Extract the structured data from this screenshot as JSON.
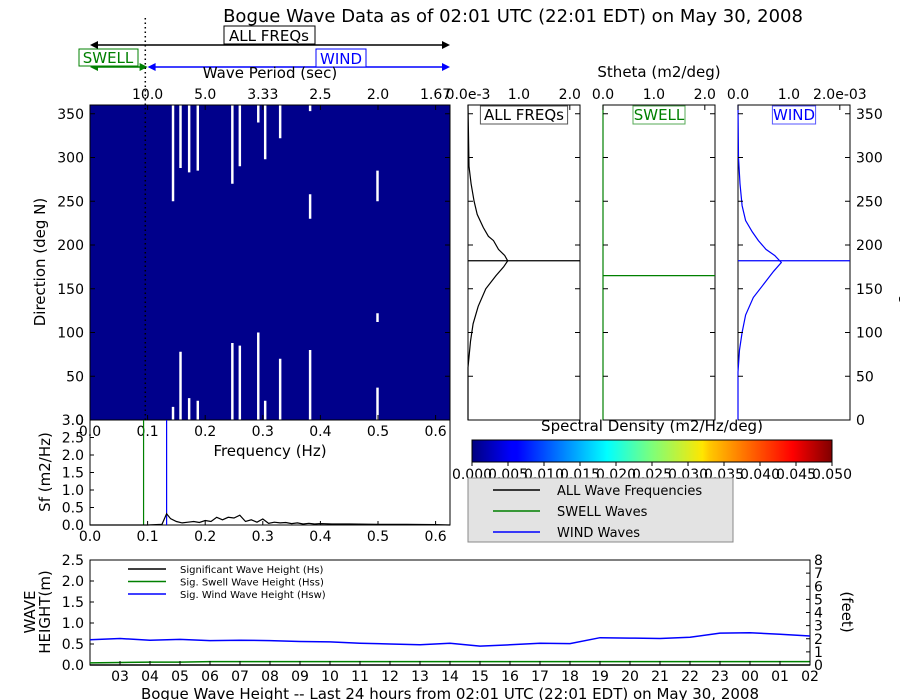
{
  "title": "Bogue Wave Data as of 02:01 UTC (22:01 EDT) on May 30, 2008",
  "colors": {
    "all": "#000000",
    "swell": "#008000",
    "wind": "#0000ff",
    "field": "#00008b",
    "frame": "#000000",
    "legend_bg": "#e3e3e3"
  },
  "band_arrows": {
    "all_label": "ALL FREQs",
    "wind_label": "WIND",
    "swell_label": "SWELL",
    "swell_range_hz": [
      0,
      0.1
    ],
    "wind_range_hz": [
      0.1,
      0.625
    ],
    "all_range_hz": [
      0,
      0.625
    ]
  },
  "chart_data": [
    {
      "id": "directional_spectrum",
      "type": "heatmap",
      "xlabel": "Frequency (Hz)",
      "ylabel": "Direction (deg N)",
      "top_xlabel": "Wave Period (sec)",
      "xlim": [
        0.0,
        0.625
      ],
      "ylim": [
        0,
        360
      ],
      "x_ticks": [
        "0.0",
        "0.1",
        "0.2",
        "0.3",
        "0.4",
        "0.5",
        "0.6"
      ],
      "x_tick_values": [
        0.0,
        0.1,
        0.2,
        0.3,
        0.4,
        0.5,
        0.6
      ],
      "top_ticks": [
        "10.0",
        "5.0",
        "3.33",
        "2.5",
        "2.0",
        "1.67"
      ],
      "top_tick_values": [
        0.1,
        0.2,
        0.3,
        0.4,
        0.5,
        0.6
      ],
      "y_ticks": [
        0,
        50,
        100,
        150,
        200,
        250,
        300,
        350
      ],
      "swell_cutoff_hz": 0.096,
      "background_value": 0.0,
      "nodata_bins": [
        {
          "f": 0.142,
          "d0": 0,
          "d1": 15
        },
        {
          "f": 0.142,
          "d0": 250,
          "d1": 360
        },
        {
          "f": 0.155,
          "d0": 0,
          "d1": 78
        },
        {
          "f": 0.155,
          "d0": 288,
          "d1": 360
        },
        {
          "f": 0.17,
          "d0": 0,
          "d1": 25
        },
        {
          "f": 0.17,
          "d0": 283,
          "d1": 360
        },
        {
          "f": 0.185,
          "d0": 0,
          "d1": 22
        },
        {
          "f": 0.185,
          "d0": 285,
          "d1": 360
        },
        {
          "f": 0.245,
          "d0": 0,
          "d1": 88
        },
        {
          "f": 0.245,
          "d0": 270,
          "d1": 360
        },
        {
          "f": 0.258,
          "d0": 0,
          "d1": 85
        },
        {
          "f": 0.258,
          "d0": 290,
          "d1": 360
        },
        {
          "f": 0.29,
          "d0": 0,
          "d1": 100
        },
        {
          "f": 0.29,
          "d0": 340,
          "d1": 360
        },
        {
          "f": 0.302,
          "d0": 0,
          "d1": 22
        },
        {
          "f": 0.302,
          "d0": 298,
          "d1": 360
        },
        {
          "f": 0.328,
          "d0": 0,
          "d1": 70
        },
        {
          "f": 0.328,
          "d0": 322,
          "d1": 360
        },
        {
          "f": 0.38,
          "d0": 0,
          "d1": 80
        },
        {
          "f": 0.38,
          "d0": 230,
          "d1": 258
        },
        {
          "f": 0.38,
          "d0": 353,
          "d1": 360
        },
        {
          "f": 0.497,
          "d0": 0,
          "d1": 37
        },
        {
          "f": 0.497,
          "d0": 112,
          "d1": 122
        },
        {
          "f": 0.497,
          "d0": 250,
          "d1": 285
        }
      ],
      "nodata_bin_width_hz": 0.006
    },
    {
      "id": "stheta_all",
      "type": "line",
      "label": "ALL FREQs",
      "top_xlabel": "Stheta (m2/deg)",
      "x_ticks": [
        "0.0e-3",
        "1.0",
        "2.0"
      ],
      "x_tick_values": [
        0.0,
        1.0,
        2.0
      ],
      "xlim": [
        0,
        2.2
      ],
      "ylim": [
        0,
        360
      ],
      "mean_direction": 182,
      "x": [
        0,
        0,
        0.05,
        0.1,
        0.2,
        0.35,
        0.55,
        0.7,
        0.78,
        0.72,
        0.6,
        0.5,
        0.4,
        0.3,
        0.18,
        0.12,
        0.06,
        0.02,
        0
      ],
      "y": [
        0,
        60,
        90,
        110,
        130,
        150,
        165,
        175,
        182,
        188,
        195,
        205,
        210,
        220,
        235,
        250,
        270,
        290,
        360
      ]
    },
    {
      "id": "stheta_swell",
      "type": "line",
      "label": "SWELL",
      "top_xlabel": "",
      "x_ticks": [
        "0.0",
        "1.0",
        "2.0"
      ],
      "x_tick_values": [
        0.0,
        1.0,
        2.0
      ],
      "xlim": [
        0,
        2.2
      ],
      "ylim": [
        0,
        360
      ],
      "mean_direction": 165,
      "x": [
        0,
        0
      ],
      "y": [
        0,
        360
      ]
    },
    {
      "id": "stheta_wind",
      "type": "line",
      "label": "WIND",
      "top_xlabel": "",
      "x_ticks": [
        "0.0",
        "1.0",
        "2.0e-03"
      ],
      "x_tick_values": [
        0.0,
        1.0,
        2.0
      ],
      "xlim": [
        0,
        2.2
      ],
      "ylim": [
        0,
        360
      ],
      "right_ylabel": "Direction (deg N)",
      "mean_direction": 182,
      "x": [
        0,
        0,
        0.03,
        0.08,
        0.15,
        0.3,
        0.5,
        0.7,
        0.85,
        0.72,
        0.55,
        0.4,
        0.28,
        0.15,
        0.08,
        0.04,
        0.01,
        0
      ],
      "y": [
        0,
        55,
        80,
        100,
        120,
        140,
        155,
        170,
        180,
        188,
        195,
        205,
        215,
        228,
        245,
        270,
        300,
        360
      ]
    },
    {
      "id": "spectrum_1d",
      "type": "line",
      "xlabel": "Frequency (Hz)",
      "ylabel": "Sf (m2/Hz)",
      "xlim": [
        0.0,
        0.625
      ],
      "ylim": [
        0.0,
        3.0
      ],
      "x_ticks": [
        "0.0",
        "0.1",
        "0.2",
        "0.3",
        "0.4",
        "0.5",
        "0.6"
      ],
      "x_tick_values": [
        0.0,
        0.1,
        0.2,
        0.3,
        0.4,
        0.5,
        0.6
      ],
      "y_ticks": [
        "0.0",
        "0.5",
        "1.0",
        "1.5",
        "2.0",
        "2.5",
        "3.0"
      ],
      "y_tick_values": [
        0.0,
        0.5,
        1.0,
        1.5,
        2.0,
        2.5,
        3.0
      ],
      "swell_separation_hz": 0.093,
      "wind_separation_hz": 0.133,
      "peak_marker_height": 3.0,
      "dotted_cutoff_hz": 0.1,
      "series": [
        {
          "name": "ALL Wave Frequencies",
          "x": [
            0.0,
            0.05,
            0.1,
            0.125,
            0.133,
            0.14,
            0.15,
            0.16,
            0.17,
            0.18,
            0.19,
            0.2,
            0.21,
            0.22,
            0.23,
            0.24,
            0.25,
            0.26,
            0.27,
            0.28,
            0.29,
            0.3,
            0.31,
            0.32,
            0.33,
            0.34,
            0.35,
            0.36,
            0.37,
            0.38,
            0.39,
            0.4,
            0.42,
            0.45,
            0.5,
            0.55,
            0.6,
            0.625
          ],
          "y": [
            0.0,
            0.0,
            0.0,
            0.02,
            0.32,
            0.18,
            0.1,
            0.06,
            0.08,
            0.1,
            0.07,
            0.13,
            0.1,
            0.22,
            0.15,
            0.22,
            0.2,
            0.28,
            0.1,
            0.15,
            0.08,
            0.17,
            0.05,
            0.08,
            0.06,
            0.07,
            0.04,
            0.06,
            0.03,
            0.05,
            0.03,
            0.04,
            0.03,
            0.03,
            0.02,
            0.02,
            0.01,
            0.0
          ]
        }
      ]
    },
    {
      "id": "wave_height_24h",
      "type": "line",
      "xlabel": "Bogue Wave Height -- Last 24 hours from 02:01 UTC (22:01 EDT) on May 30, 2008",
      "ylabel": "WAVE HEIGHT(m)",
      "right_ylabel": "(feet)",
      "ylim": [
        0.0,
        2.5
      ],
      "y_ticks": [
        "0.0",
        "0.5",
        "1.0",
        "1.5",
        "2.0",
        "2.5"
      ],
      "y_tick_values": [
        0.0,
        0.5,
        1.0,
        1.5,
        2.0,
        2.5
      ],
      "right_ticks": [
        "0",
        "1",
        "2",
        "3",
        "4",
        "5",
        "6",
        "7",
        "8"
      ],
      "x_range_hours": [
        0,
        24
      ],
      "x_tick_positions": [
        1,
        2,
        3,
        4,
        5,
        6,
        7,
        8,
        9,
        10,
        11,
        12,
        13,
        14,
        15,
        16,
        17,
        18,
        19,
        20,
        21,
        22,
        23,
        24
      ],
      "x_ticks": [
        "03",
        "04",
        "05",
        "06",
        "07",
        "08",
        "09",
        "10",
        "11",
        "12",
        "13",
        "14",
        "15",
        "16",
        "17",
        "18",
        "19",
        "20",
        "21",
        "22",
        "23",
        "00",
        "01",
        "02"
      ],
      "series": [
        {
          "name": "Significant Wave Height (Hs)",
          "color_key": "all",
          "x": [
            0,
            24
          ],
          "y": [
            0,
            0
          ]
        },
        {
          "name": "Sig. Swell Wave Height (Hss)",
          "color_key": "swell",
          "x": [
            0,
            1,
            2,
            3,
            4,
            5,
            6,
            7,
            8,
            9,
            10,
            11,
            12,
            13,
            14,
            15,
            16,
            17,
            18,
            19,
            20,
            21,
            22,
            23,
            24
          ],
          "y": [
            0.05,
            0.06,
            0.07,
            0.07,
            0.08,
            0.08,
            0.08,
            0.08,
            0.08,
            0.08,
            0.08,
            0.08,
            0.08,
            0.08,
            0.08,
            0.08,
            0.08,
            0.08,
            0.08,
            0.08,
            0.08,
            0.08,
            0.08,
            0.08,
            0.08
          ]
        },
        {
          "name": "Sig. Wind Wave Height (Hsw)",
          "color_key": "wind",
          "x": [
            0,
            1,
            2,
            3,
            4,
            5,
            6,
            7,
            8,
            9,
            10,
            11,
            12,
            13,
            14,
            15,
            16,
            17,
            18,
            19,
            20,
            21,
            22,
            23,
            24
          ],
          "y": [
            0.6,
            0.63,
            0.59,
            0.61,
            0.58,
            0.59,
            0.58,
            0.56,
            0.55,
            0.52,
            0.5,
            0.48,
            0.52,
            0.45,
            0.48,
            0.52,
            0.51,
            0.65,
            0.64,
            0.63,
            0.66,
            0.76,
            0.77,
            0.73,
            0.69
          ]
        }
      ]
    }
  ],
  "colorbar": {
    "label": "Spectral Density (m2/Hz/deg)",
    "min": 0.0,
    "max": 0.05,
    "ticks": [
      "0.000",
      "0.005",
      "0.010",
      "0.015",
      "0.020",
      "0.025",
      "0.030",
      "0.035",
      "0.040",
      "0.045",
      "0.050"
    ],
    "tick_values": [
      0.0,
      0.005,
      0.01,
      0.015,
      0.02,
      0.025,
      0.03,
      0.035,
      0.04,
      0.045,
      0.05
    ],
    "colormap": "jet"
  },
  "spectrum_legend": [
    {
      "label": "ALL Wave Frequencies",
      "color_key": "all"
    },
    {
      "label": "SWELL Waves",
      "color_key": "swell"
    },
    {
      "label": "WIND Waves",
      "color_key": "wind"
    }
  ]
}
